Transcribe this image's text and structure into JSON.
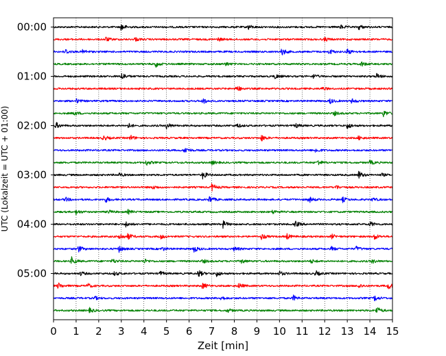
{
  "chart_data": {
    "type": "line",
    "title": "",
    "xlabel": "Zeit  [min]",
    "ylabel": "UTC (Lokalzeit = UTC + 01:00)",
    "xlim": [
      0,
      15
    ],
    "x_ticks": [
      "0",
      "1",
      "2",
      "3",
      "4",
      "5",
      "6",
      "7",
      "8",
      "9",
      "10",
      "11",
      "12",
      "13",
      "14",
      "15"
    ],
    "y_ticks": [
      "00:00",
      "01:00",
      "02:00",
      "03:00",
      "04:00",
      "05:00"
    ],
    "grid": "vertical dotted",
    "legend": "none",
    "trace_interval_min": 15,
    "color_cycle": [
      "#000000",
      "#ff0000",
      "#0000ff",
      "#008000"
    ],
    "series": [
      {
        "start": "00:00",
        "color": "#000000",
        "events": [
          [
            3.0,
            1.0
          ],
          [
            8.6,
            0.7
          ],
          [
            12.7,
            0.5
          ],
          [
            13.5,
            0.7
          ]
        ]
      },
      {
        "start": "00:15",
        "color": "#ff0000",
        "events": [
          [
            2.3,
            0.6
          ],
          [
            3.6,
            0.5
          ],
          [
            7.3,
            0.4
          ],
          [
            12.0,
            0.5
          ]
        ]
      },
      {
        "start": "00:30",
        "color": "#0000ff",
        "events": [
          [
            0.5,
            0.8
          ],
          [
            1.3,
            0.6
          ],
          [
            10.1,
            1.0
          ],
          [
            12.2,
            0.7
          ],
          [
            13.0,
            0.8
          ]
        ]
      },
      {
        "start": "00:45",
        "color": "#008000",
        "events": [
          [
            4.5,
            0.9
          ],
          [
            7.6,
            0.5
          ],
          [
            13.6,
            0.7
          ]
        ]
      },
      {
        "start": "01:00",
        "color": "#000000",
        "events": [
          [
            3.0,
            1.1
          ],
          [
            9.8,
            0.6
          ],
          [
            11.5,
            0.5
          ],
          [
            14.3,
            0.7
          ]
        ]
      },
      {
        "start": "01:15",
        "color": "#ff0000",
        "events": [
          [
            8.1,
            0.9
          ],
          [
            11.9,
            0.4
          ]
        ]
      },
      {
        "start": "01:30",
        "color": "#0000ff",
        "events": [
          [
            1.0,
            0.5
          ],
          [
            6.6,
            0.8
          ],
          [
            12.2,
            0.8
          ],
          [
            13.2,
            0.6
          ]
        ]
      },
      {
        "start": "01:45",
        "color": "#008000",
        "events": [
          [
            0.9,
            0.6
          ],
          [
            12.4,
            0.6
          ],
          [
            14.6,
            0.8
          ]
        ]
      },
      {
        "start": "02:00",
        "color": "#000000",
        "events": [
          [
            0.1,
            0.8
          ],
          [
            3.3,
            0.6
          ],
          [
            5.0,
            0.8
          ],
          [
            8.1,
            0.6
          ],
          [
            10.7,
            0.6
          ],
          [
            13.0,
            0.8
          ]
        ]
      },
      {
        "start": "02:15",
        "color": "#ff0000",
        "events": [
          [
            2.2,
            0.7
          ],
          [
            3.4,
            0.7
          ],
          [
            9.2,
            0.8
          ],
          [
            13.5,
            0.5
          ]
        ]
      },
      {
        "start": "02:30",
        "color": "#0000ff",
        "events": [
          [
            5.8,
            0.9
          ],
          [
            11.6,
            0.6
          ]
        ]
      },
      {
        "start": "02:45",
        "color": "#008000",
        "events": [
          [
            4.1,
            0.7
          ],
          [
            7.0,
            0.5
          ],
          [
            11.7,
            0.7
          ],
          [
            14.0,
            0.6
          ]
        ]
      },
      {
        "start": "03:00",
        "color": "#000000",
        "events": [
          [
            2.9,
            0.5
          ],
          [
            6.6,
            1.0
          ],
          [
            13.5,
            1.0
          ],
          [
            14.5,
            0.4
          ]
        ]
      },
      {
        "start": "03:15",
        "color": "#ff0000",
        "events": [
          [
            4.4,
            0.5
          ],
          [
            7.0,
            1.0
          ],
          [
            12.5,
            0.5
          ]
        ]
      },
      {
        "start": "03:30",
        "color": "#0000ff",
        "events": [
          [
            0.5,
            0.6
          ],
          [
            2.3,
            0.7
          ],
          [
            6.9,
            0.9
          ],
          [
            11.3,
            0.8
          ],
          [
            12.8,
            0.6
          ],
          [
            14.1,
            0.5
          ]
        ]
      },
      {
        "start": "03:45",
        "color": "#008000",
        "events": [
          [
            1.0,
            0.6
          ],
          [
            2.4,
            0.5
          ],
          [
            3.3,
            0.5
          ],
          [
            9.7,
            0.5
          ]
        ]
      },
      {
        "start": "04:00",
        "color": "#000000",
        "events": [
          [
            3.2,
            0.7
          ],
          [
            7.5,
            0.9
          ],
          [
            10.7,
            0.8
          ],
          [
            14.0,
            0.7
          ]
        ]
      },
      {
        "start": "04:15",
        "color": "#ff0000",
        "events": [
          [
            2.9,
            1.0
          ],
          [
            3.3,
            0.8
          ],
          [
            4.7,
            0.7
          ],
          [
            9.2,
            0.8
          ],
          [
            10.3,
            0.8
          ],
          [
            12.3,
            0.6
          ],
          [
            14.2,
            0.8
          ]
        ]
      },
      {
        "start": "04:30",
        "color": "#0000ff",
        "events": [
          [
            1.1,
            0.8
          ],
          [
            2.9,
            0.8
          ],
          [
            4.8,
            0.5
          ],
          [
            6.2,
            0.9
          ],
          [
            8.0,
            0.6
          ],
          [
            12.3,
            0.5
          ],
          [
            13.4,
            0.6
          ]
        ]
      },
      {
        "start": "04:45",
        "color": "#008000",
        "events": [
          [
            0.8,
            1.0
          ],
          [
            2.6,
            0.6
          ],
          [
            4.0,
            0.6
          ],
          [
            6.6,
            0.5
          ],
          [
            8.3,
            0.6
          ],
          [
            11.4,
            0.5
          ],
          [
            14.1,
            0.5
          ]
        ]
      },
      {
        "start": "05:00",
        "color": "#000000",
        "events": [
          [
            1.2,
            0.5
          ],
          [
            2.7,
            0.5
          ],
          [
            4.7,
            0.6
          ],
          [
            6.4,
            1.0
          ],
          [
            7.2,
            0.8
          ],
          [
            10.0,
            0.6
          ],
          [
            11.6,
            0.7
          ]
        ]
      },
      {
        "start": "05:15",
        "color": "#ff0000",
        "events": [
          [
            0.2,
            0.8
          ],
          [
            1.5,
            0.6
          ],
          [
            6.6,
            0.8
          ],
          [
            8.2,
            0.7
          ],
          [
            13.5,
            0.6
          ],
          [
            14.8,
            0.9
          ]
        ]
      },
      {
        "start": "05:30",
        "color": "#0000ff",
        "events": [
          [
            1.8,
            0.5
          ],
          [
            7.4,
            0.6
          ],
          [
            10.6,
            0.7
          ],
          [
            14.2,
            0.7
          ]
        ]
      },
      {
        "start": "05:45",
        "color": "#008000",
        "events": [
          [
            1.6,
            0.6
          ],
          [
            7.7,
            0.5
          ],
          [
            14.3,
            1.0
          ]
        ]
      }
    ]
  }
}
